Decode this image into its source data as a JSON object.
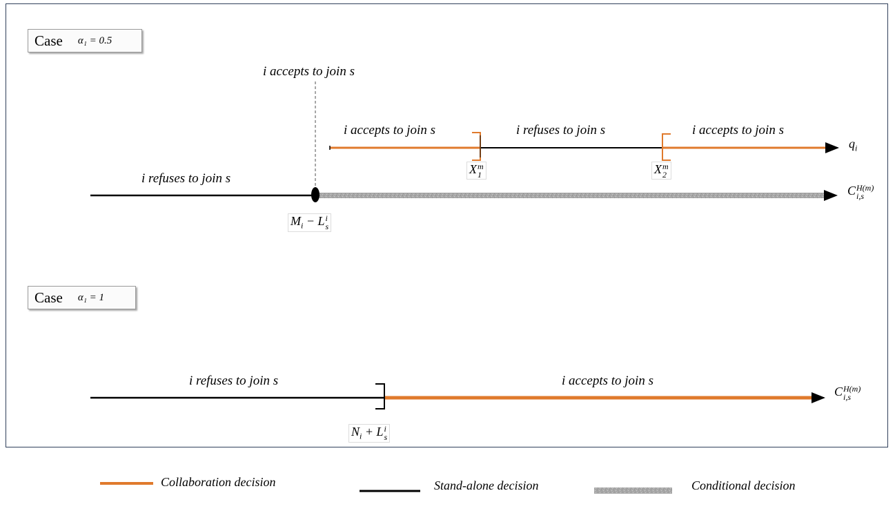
{
  "colors": {
    "collaboration": "#e07a2c",
    "standalone": "#000000",
    "conditional": "#a5a5a5",
    "frame": "#2f3f5a"
  },
  "case1": {
    "label": "Case",
    "alpha": "α₁ = 0.5",
    "top_label": "i  accepts to join   s",
    "q_segments": [
      {
        "text": "i  accepts to join   s",
        "decision": "collaboration"
      },
      {
        "text": "i   refuses to join   s",
        "decision": "standalone"
      },
      {
        "text": "i  accepts to join   s",
        "decision": "collaboration"
      }
    ],
    "q_axis": "q",
    "q_axis_sub": "i",
    "c_segment_left": "i   refuses to join   s",
    "c_axis_base": "C",
    "c_axis_sup": "H(m)",
    "c_axis_sub": "i,s",
    "threshold": {
      "main": "M",
      "sub_i": "i",
      "minus": " − L",
      "sup": "i",
      "sub": "s"
    },
    "x1": {
      "main": "X",
      "sup": "m",
      "sub": "1"
    },
    "x2": {
      "main": "X",
      "sup": "m",
      "sub": "2"
    }
  },
  "case2": {
    "label": "Case",
    "alpha": "α₁ = 1",
    "left_segment": "i   refuses to join   s",
    "right_segment": "i  accepts to join   s",
    "c_axis_base": "C",
    "c_axis_sup": "H(m)",
    "c_axis_sub": "i,s",
    "threshold": {
      "main": "N",
      "sub_i": "i",
      "plus": " + L",
      "sup": "i",
      "sub": "s"
    }
  },
  "legend": {
    "collaboration": "Collaboration decision",
    "standalone": "Stand-alone decision",
    "conditional": "Conditional decision"
  }
}
